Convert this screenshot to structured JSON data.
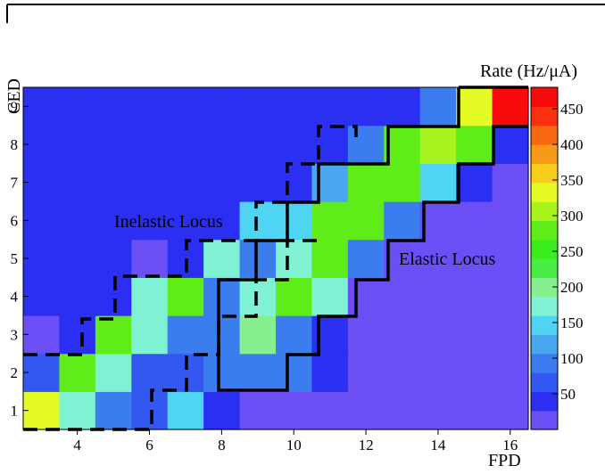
{
  "chart_data": {
    "type": "heatmap",
    "xlabel": "FPD",
    "ylabel": "CED",
    "colorbar_title": "Rate (Hz/μA)",
    "x_ticks": [
      4,
      6,
      8,
      10,
      12,
      14,
      16
    ],
    "y_ticks": [
      1,
      2,
      3,
      4,
      5,
      6,
      7,
      8,
      9
    ],
    "colorbar_ticks": [
      50,
      100,
      150,
      200,
      250,
      300,
      350,
      400,
      450
    ],
    "xlim": [
      3,
      16
    ],
    "ylim": [
      1,
      9
    ],
    "zlim": [
      0,
      480
    ],
    "annotations": [
      "Inelastic Locus",
      "Elastic Locus"
    ],
    "z": [
      [
        340,
        160,
        105,
        60,
        140,
        50,
        20,
        20,
        20,
        20,
        20,
        20,
        20,
        20
      ],
      [
        60,
        270,
        165,
        60,
        60,
        105,
        105,
        105,
        50,
        20,
        20,
        20,
        20,
        20
      ],
      [
        20,
        50,
        290,
        185,
        105,
        105,
        200,
        100,
        40,
        20,
        20,
        20,
        20,
        20
      ],
      [
        40,
        35,
        35,
        160,
        290,
        105,
        170,
        280,
        165,
        20,
        20,
        20,
        20,
        20
      ],
      [
        40,
        35,
        35,
        25,
        50,
        160,
        100,
        170,
        270,
        100,
        20,
        20,
        20,
        20
      ],
      [
        50,
        35,
        35,
        30,
        30,
        30,
        140,
        140,
        270,
        270,
        100,
        20,
        20,
        20
      ],
      [
        40,
        35,
        35,
        30,
        30,
        30,
        35,
        40,
        130,
        280,
        280,
        140,
        35,
        20
      ],
      [
        30,
        30,
        40,
        40,
        40,
        40,
        40,
        40,
        50,
        100,
        290,
        310,
        280,
        40
      ],
      [
        30,
        30,
        30,
        30,
        30,
        30,
        30,
        30,
        40,
        40,
        40,
        100,
        340,
        470
      ]
    ]
  }
}
